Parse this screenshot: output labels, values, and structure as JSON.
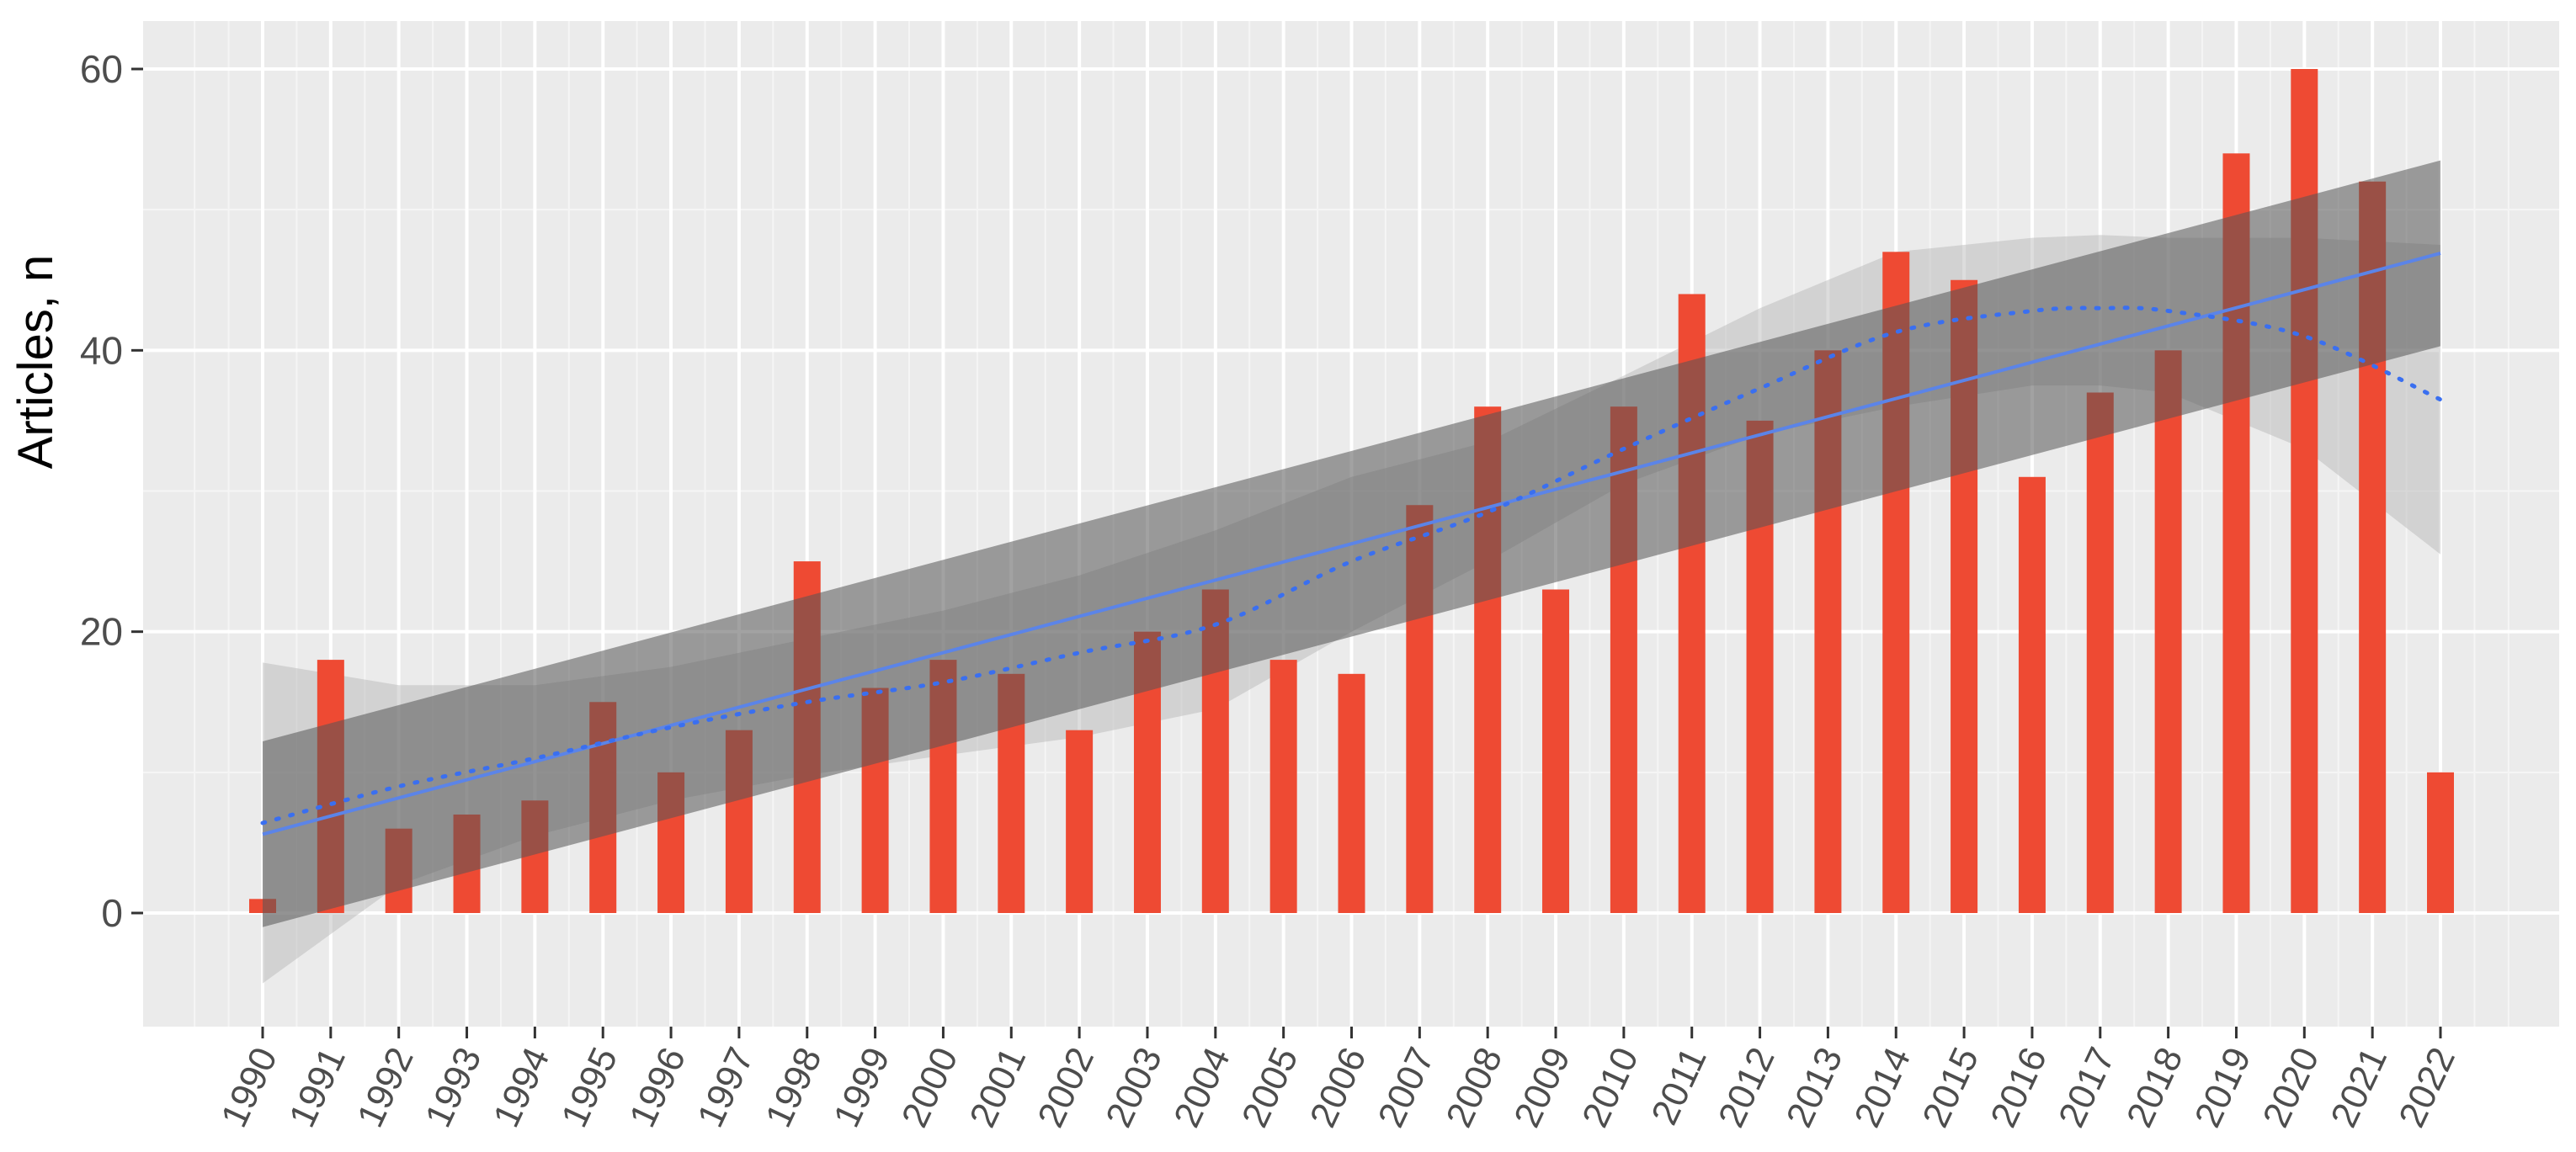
{
  "chart_data": {
    "type": "bar",
    "title": "",
    "xlabel": "",
    "ylabel": "Articles, n",
    "ylim": [
      -8,
      63
    ],
    "yticks": [
      0,
      20,
      40,
      60
    ],
    "grid": true,
    "categories": [
      "1990",
      "1991",
      "1992",
      "1993",
      "1994",
      "1995",
      "1996",
      "1997",
      "1998",
      "1999",
      "2000",
      "2001",
      "2002",
      "2003",
      "2004",
      "2005",
      "2006",
      "2007",
      "2008",
      "2009",
      "2010",
      "2011",
      "2012",
      "2013",
      "2014",
      "2015",
      "2016",
      "2017",
      "2018",
      "2019",
      "2020",
      "2021",
      "2022"
    ],
    "values": [
      1,
      18,
      6,
      7,
      8,
      15,
      10,
      13,
      25,
      16,
      18,
      17,
      13,
      20,
      23,
      18,
      17,
      29,
      36,
      23,
      36,
      44,
      35,
      40,
      47,
      45,
      31,
      37,
      40,
      54,
      60,
      52,
      10
    ],
    "bar_color": "#EE4A33",
    "linear_fit": {
      "color": "#5B84E8",
      "style": "solid",
      "start": 5.6,
      "end": 46.9,
      "ci_lower_start": -1,
      "ci_upper_start": 12.2,
      "ci_lower_end": 40.3,
      "ci_upper_end": 53.5
    },
    "smooth_fit": {
      "color": "#3A6FF0",
      "style": "dotted",
      "x": [
        "1990",
        "1992",
        "1994",
        "1996",
        "1998",
        "2000",
        "2002",
        "2004",
        "2006",
        "2008",
        "2010",
        "2012",
        "2014",
        "2016",
        "2017",
        "2018",
        "2020",
        "2022"
      ],
      "y": [
        6.4,
        9.0,
        11.0,
        13.2,
        15.0,
        16.4,
        18.5,
        20.5,
        25.0,
        28.5,
        33.0,
        37.3,
        41.3,
        42.8,
        43.0,
        42.8,
        41.0,
        36.5
      ],
      "ci_lower": [
        -5,
        2.0,
        5.5,
        8.0,
        9.8,
        11.2,
        12.5,
        14.5,
        20.0,
        25.0,
        30.5,
        34.0,
        36.0,
        37.5,
        37.5,
        37.0,
        33.0,
        25.5
      ],
      "ci_upper": [
        17.8,
        16.2,
        16.2,
        17.5,
        19.5,
        21.5,
        24.0,
        27.2,
        31.0,
        33.5,
        38.2,
        43.0,
        47.0,
        48.0,
        48.2,
        48.0,
        48.0,
        47.5
      ]
    }
  }
}
